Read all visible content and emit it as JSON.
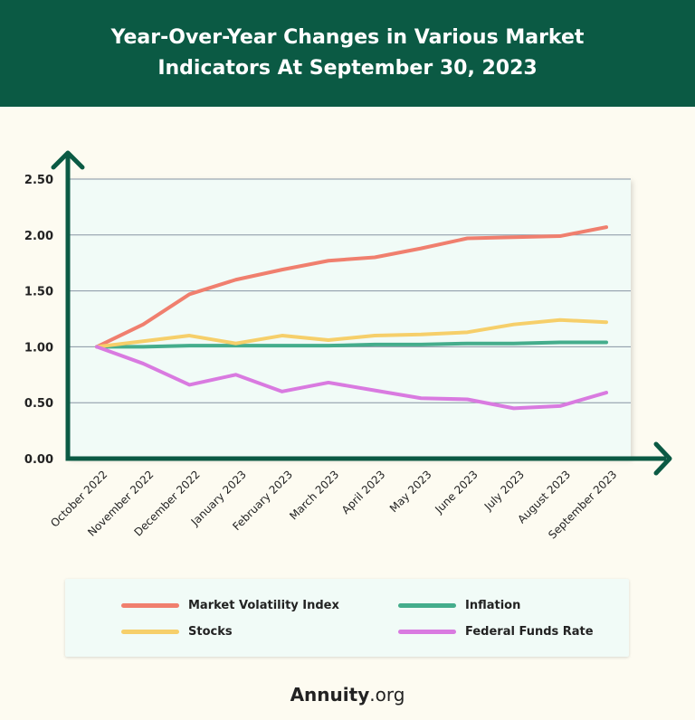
{
  "header": {
    "title": "Year-Over-Year Changes in Various Market Indicators At September 30, 2023"
  },
  "chart_data": {
    "type": "line",
    "title": "Year-Over-Year Changes in Various Market Indicators At September 30, 2023",
    "xlabel": "",
    "ylabel": "",
    "ylim": [
      0,
      2.5
    ],
    "yticks": [
      "0.00",
      "0.50",
      "1.00",
      "1.50",
      "2.00",
      "2.50"
    ],
    "grid": true,
    "legend_position": "bottom",
    "categories": [
      "October 2022",
      "November 2022",
      "December 2022",
      "January 2023",
      "February 2023",
      "March 2023",
      "April 2023",
      "May 2023",
      "June 2023",
      "July 2023",
      "August 2023",
      "September 2023"
    ],
    "series": [
      {
        "name": "Market Volatility Index",
        "color": "#f07f6e",
        "values": [
          1.0,
          1.2,
          1.47,
          1.6,
          1.69,
          1.77,
          1.8,
          1.88,
          1.97,
          1.98,
          1.99,
          2.07
        ]
      },
      {
        "name": "Inflation",
        "color": "#45ad8c",
        "values": [
          1.0,
          1.0,
          1.01,
          1.01,
          1.01,
          1.01,
          1.02,
          1.02,
          1.03,
          1.03,
          1.04,
          1.04
        ]
      },
      {
        "name": "Stocks",
        "color": "#f6cf6a",
        "values": [
          1.0,
          1.05,
          1.1,
          1.03,
          1.1,
          1.06,
          1.1,
          1.11,
          1.13,
          1.2,
          1.24,
          1.22
        ]
      },
      {
        "name": "Federal Funds Rate",
        "color": "#d97ae0",
        "values": [
          1.0,
          0.85,
          0.66,
          0.75,
          0.6,
          0.68,
          0.61,
          0.54,
          0.53,
          0.45,
          0.47,
          0.59
        ]
      }
    ]
  },
  "colors": {
    "header": "#0b5a44",
    "axis": "#0b5a44",
    "plot_bg": "#f1fbf7",
    "page_bg": "#fdfbf1"
  },
  "footer": {
    "brand": "Annuity",
    "suffix": ".org"
  }
}
